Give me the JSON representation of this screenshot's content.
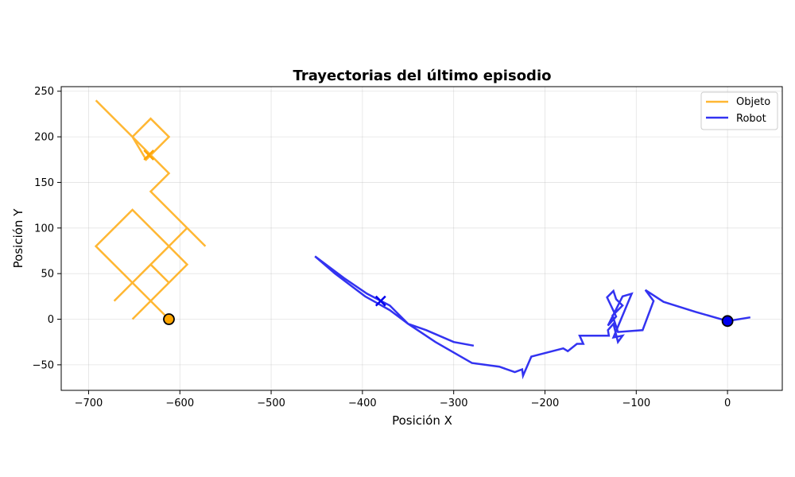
{
  "chart_data": {
    "type": "line",
    "title": "Trayectorias del último episodio",
    "xlabel": "Posición X",
    "ylabel": "Posición Y",
    "xlim": [
      -730,
      60
    ],
    "ylim": [
      -78,
      255
    ],
    "xticks": [
      -700,
      -600,
      -500,
      -400,
      -300,
      -200,
      -100,
      0
    ],
    "yticks": [
      -50,
      0,
      50,
      100,
      150,
      200,
      250
    ],
    "grid": true,
    "legend_position": "top-right",
    "series": [
      {
        "name": "Objeto",
        "color": "#FFA500",
        "points": [
          [
            -692,
            240
          ],
          [
            -652,
            200
          ],
          [
            -632,
            220
          ],
          [
            -612,
            200
          ],
          [
            -637,
            175
          ],
          [
            -652,
            200
          ],
          [
            -612,
            160
          ],
          [
            -632,
            140
          ],
          [
            -572,
            80
          ],
          [
            -592,
            100
          ],
          [
            -652,
            40
          ],
          [
            -672,
            20
          ],
          [
            -652,
            40
          ],
          [
            -612,
            80
          ],
          [
            -592,
            60
          ],
          [
            -652,
            0
          ],
          [
            -632,
            20
          ],
          [
            -612,
            40
          ],
          [
            -632,
            60
          ],
          [
            -652,
            40
          ],
          [
            -612,
            80
          ],
          [
            -652,
            120
          ],
          [
            -692,
            80
          ],
          [
            -612,
            0
          ]
        ],
        "start": [
          -612,
          0
        ],
        "end": [
          -634,
          180
        ]
      },
      {
        "name": "Robot",
        "color": "#0000EE",
        "points": [
          [
            25,
            2
          ],
          [
            0,
            -2
          ],
          [
            -35,
            8
          ],
          [
            -70,
            19
          ],
          [
            -90,
            32
          ],
          [
            -81,
            20
          ],
          [
            -93,
            -12
          ],
          [
            -120,
            -14
          ],
          [
            -126,
            4
          ],
          [
            -115,
            15
          ],
          [
            -122,
            22
          ],
          [
            -125,
            31
          ],
          [
            -132,
            24
          ],
          [
            -122,
            3
          ],
          [
            -131,
            -7
          ],
          [
            -115,
            25
          ],
          [
            -105,
            28
          ],
          [
            -125,
            -20
          ],
          [
            -115,
            -18
          ],
          [
            -120,
            -25
          ],
          [
            -125,
            -5
          ],
          [
            -131,
            -12
          ],
          [
            -130,
            -18
          ],
          [
            -162,
            -18
          ],
          [
            -158,
            -27
          ],
          [
            -165,
            -27
          ],
          [
            -175,
            -35
          ],
          [
            -180,
            -32
          ],
          [
            -215,
            -41
          ],
          [
            -224,
            -62
          ],
          [
            -225,
            -55
          ],
          [
            -233,
            -58
          ],
          [
            -250,
            -52
          ],
          [
            -280,
            -48
          ],
          [
            -320,
            -25
          ],
          [
            -335,
            -15
          ],
          [
            -350,
            -5
          ],
          [
            -370,
            10
          ],
          [
            -397,
            25
          ],
          [
            -430,
            50
          ],
          [
            -452,
            69
          ],
          [
            -420,
            45
          ],
          [
            -395,
            28
          ],
          [
            -370,
            15
          ],
          [
            -350,
            -5
          ],
          [
            -330,
            -12
          ],
          [
            -300,
            -25
          ],
          [
            -278,
            -29
          ]
        ],
        "start": [
          0,
          -2
        ],
        "end": [
          -380,
          20
        ]
      }
    ]
  }
}
